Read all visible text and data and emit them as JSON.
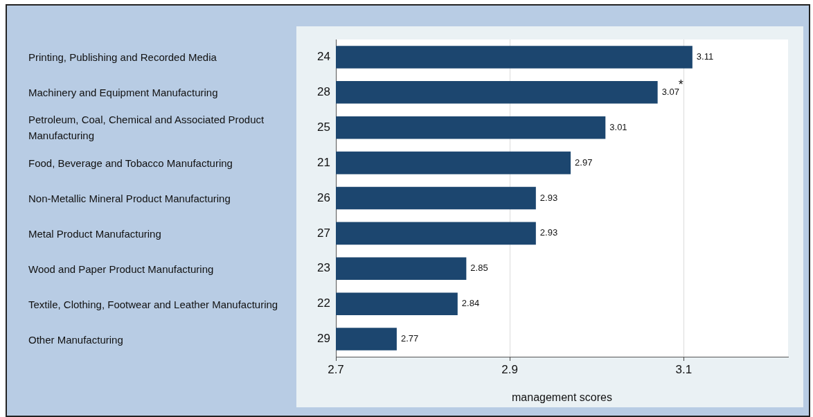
{
  "chart_data": {
    "type": "bar",
    "orientation": "horizontal",
    "xlabel": "management scores",
    "categories": [
      "24",
      "28",
      "25",
      "21",
      "26",
      "27",
      "23",
      "22",
      "29"
    ],
    "values": [
      3.11,
      3.07,
      3.01,
      2.97,
      2.93,
      2.93,
      2.85,
      2.84,
      2.77
    ],
    "color": "#1c466f",
    "xlim": [
      2.7,
      3.22
    ],
    "xticks": [
      2.7,
      2.9,
      3.1
    ],
    "grid": "x",
    "data_labels": true,
    "legend": false,
    "annotations": [
      "Printing, Publishing and Recorded Media",
      "Machinery and Equipment Manufacturing",
      "Petroleum, Coal, Chemical and Associated Product Manufacturing",
      "Food, Beverage and Tobacco Manufacturing",
      "Non-Metallic Mineral Product Manufacturing",
      "Metal Product Manufacturing",
      "Wood and Paper Product Manufacturing",
      "Textile, Clothing, Footwear and Leather Manufacturing",
      "Other Manufacturing",
      {
        "text": "*",
        "x": 3.07,
        "y": "28"
      }
    ]
  }
}
